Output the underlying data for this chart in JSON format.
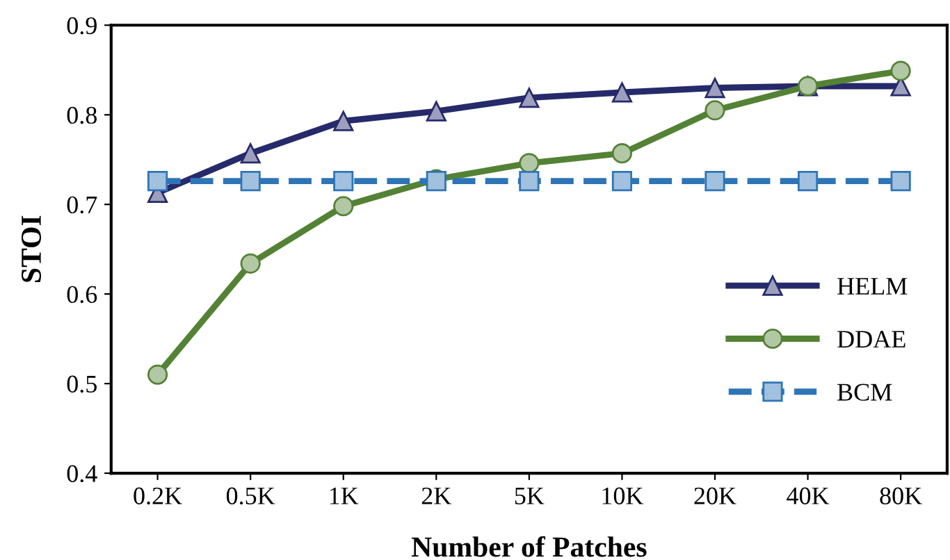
{
  "chart_data": {
    "type": "line",
    "xlabel": "Number of Patches",
    "ylabel": "STOI",
    "categories": [
      "0.2K",
      "0.5K",
      "1K",
      "2K",
      "5K",
      "10K",
      "20K",
      "40K",
      "80K"
    ],
    "ylim": [
      0.4,
      0.9
    ],
    "yticks": [
      0.4,
      0.5,
      0.6,
      0.7,
      0.8,
      0.9
    ],
    "grid": false,
    "legend": "bottom right",
    "series": [
      {
        "name": "HELM",
        "color": "#262a6b",
        "marker": "triangle",
        "line_style": "solid",
        "values": [
          0.713,
          0.757,
          0.793,
          0.804,
          0.819,
          0.825,
          0.83,
          0.832,
          0.832
        ]
      },
      {
        "name": "DDAE",
        "color": "#548235",
        "marker": "circle",
        "line_style": "solid",
        "values": [
          0.51,
          0.634,
          0.698,
          0.728,
          0.746,
          0.757,
          0.805,
          0.832,
          0.849
        ]
      },
      {
        "name": "BCM",
        "color": "#2e75b6",
        "marker": "square",
        "line_style": "dashed",
        "values": [
          0.726,
          0.726,
          0.726,
          0.726,
          0.726,
          0.726,
          0.726,
          0.726,
          0.726
        ]
      }
    ]
  }
}
